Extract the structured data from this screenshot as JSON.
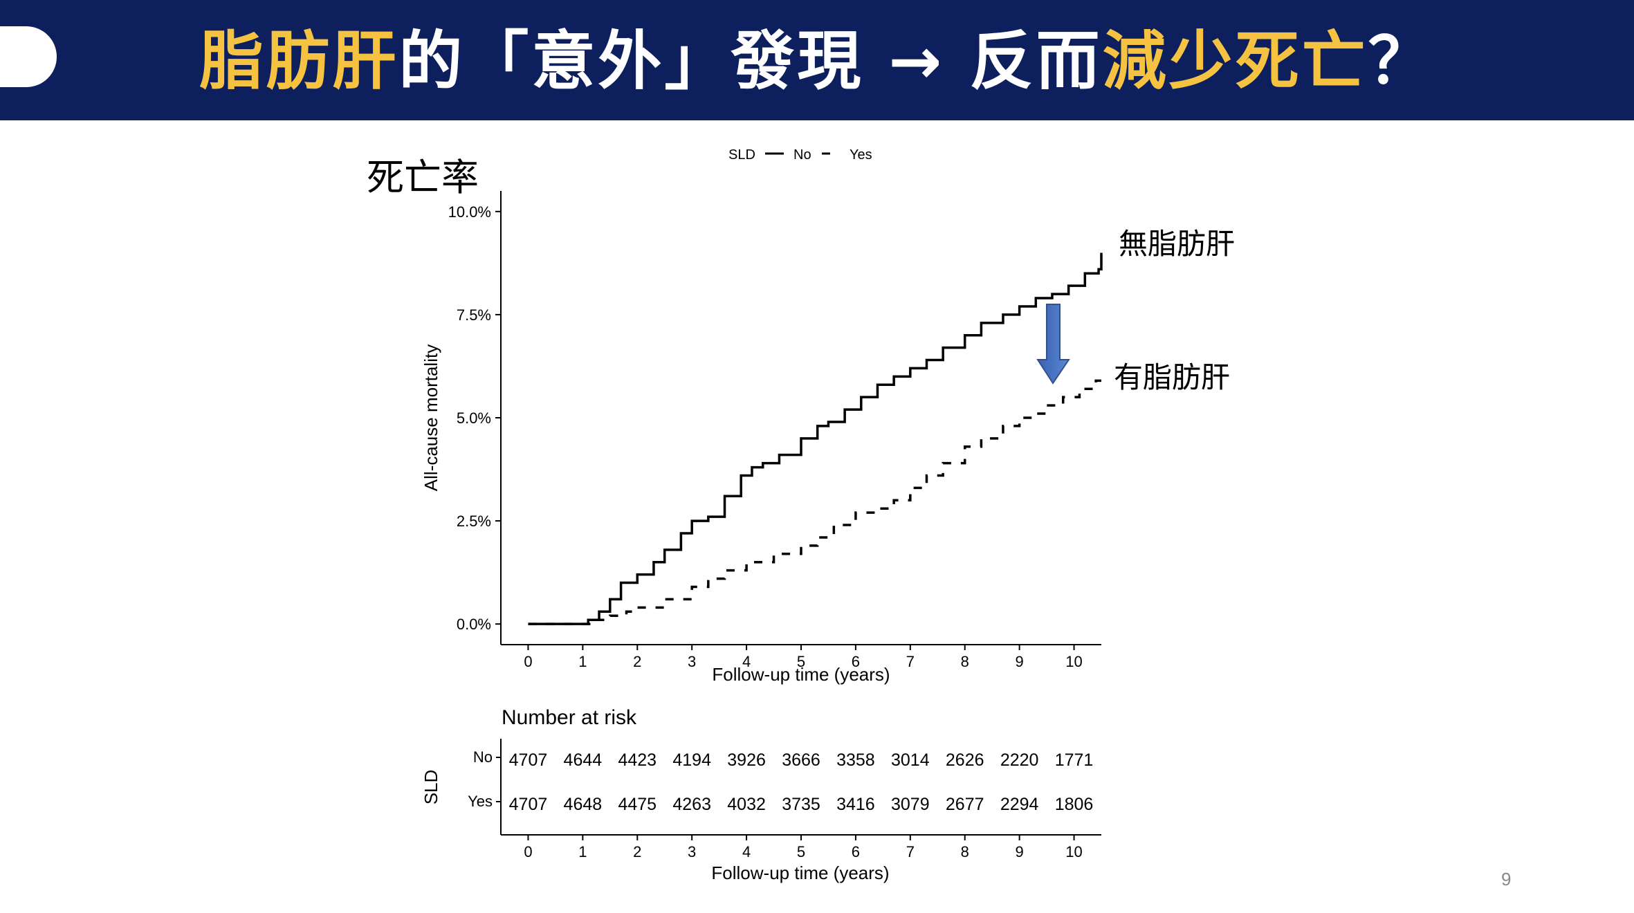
{
  "title": {
    "part1_highlight": "脂肪肝",
    "part2": "的「意外」發現 → 反而",
    "part3_highlight": "減少死亡",
    "part4": "？"
  },
  "page_number": "9",
  "annotations": {
    "y_axis_cn": "死亡率",
    "no_sld_cn": "無脂肪肝",
    "sld_cn": "有脂肪肝"
  },
  "colors": {
    "title_bg": "#0d1f5c",
    "title_highlight": "#f5c242",
    "arrow": "#4472c4"
  },
  "chart_data": {
    "type": "line",
    "title": "",
    "xlabel": "Follow-up time (years)",
    "ylabel": "All-cause mortality",
    "xlim": [
      -0.5,
      10.5
    ],
    "ylim": [
      -0.5,
      10.5
    ],
    "x_ticks": [
      0,
      1,
      2,
      3,
      4,
      5,
      6,
      7,
      8,
      9,
      10
    ],
    "y_ticks": [
      0,
      2.5,
      5.0,
      7.5,
      10.0
    ],
    "y_tick_labels": [
      "0.0%",
      "2.5%",
      "5.0%",
      "7.5%",
      "10.0%"
    ],
    "legend": {
      "title": "SLD",
      "position": "top",
      "entries": [
        "No",
        "Yes"
      ]
    },
    "series": [
      {
        "name": "No",
        "style": "solid",
        "x": [
          0,
          1.0,
          1.1,
          1.3,
          1.5,
          1.7,
          2.0,
          2.3,
          2.5,
          2.8,
          3.0,
          3.3,
          3.6,
          3.9,
          4.1,
          4.3,
          4.6,
          5.0,
          5.3,
          5.5,
          5.8,
          6.1,
          6.4,
          6.7,
          7.0,
          7.3,
          7.6,
          8.0,
          8.3,
          8.7,
          9.0,
          9.3,
          9.6,
          9.9,
          10.2,
          10.45,
          10.5
        ],
        "values": [
          0,
          0,
          0.1,
          0.3,
          0.6,
          1.0,
          1.2,
          1.5,
          1.8,
          2.2,
          2.5,
          2.6,
          3.1,
          3.6,
          3.8,
          3.9,
          4.1,
          4.5,
          4.8,
          4.9,
          5.2,
          5.5,
          5.8,
          6.0,
          6.2,
          6.4,
          6.7,
          7.0,
          7.3,
          7.5,
          7.7,
          7.9,
          8.0,
          8.2,
          8.5,
          8.6,
          9.0
        ]
      },
      {
        "name": "Yes",
        "style": "dashed",
        "x": [
          0,
          1.0,
          1.2,
          1.5,
          1.8,
          2.0,
          2.5,
          3.0,
          3.3,
          3.6,
          4.0,
          4.5,
          5.0,
          5.3,
          5.6,
          6.0,
          6.4,
          6.7,
          7.0,
          7.3,
          7.6,
          8.0,
          8.3,
          8.7,
          9.0,
          9.3,
          9.5,
          9.8,
          10.1,
          10.4,
          10.5
        ],
        "values": [
          0,
          0,
          0.1,
          0.2,
          0.3,
          0.4,
          0.6,
          0.9,
          1.1,
          1.3,
          1.5,
          1.7,
          1.9,
          2.1,
          2.4,
          2.7,
          2.8,
          3.0,
          3.3,
          3.6,
          3.9,
          4.3,
          4.5,
          4.8,
          5.0,
          5.1,
          5.3,
          5.5,
          5.7,
          5.9,
          5.9
        ]
      }
    ],
    "risk_table": {
      "title": "Number at risk",
      "group_label": "SLD",
      "xlabel": "Follow-up time (years)",
      "times": [
        0,
        1,
        2,
        3,
        4,
        5,
        6,
        7,
        8,
        9,
        10
      ],
      "rows": [
        {
          "name": "No",
          "values": [
            4707,
            4644,
            4423,
            4194,
            3926,
            3666,
            3358,
            3014,
            2626,
            2220,
            1771
          ]
        },
        {
          "name": "Yes",
          "values": [
            4707,
            4648,
            4475,
            4263,
            4032,
            3735,
            3416,
            3079,
            2677,
            2294,
            1806
          ]
        }
      ]
    }
  }
}
